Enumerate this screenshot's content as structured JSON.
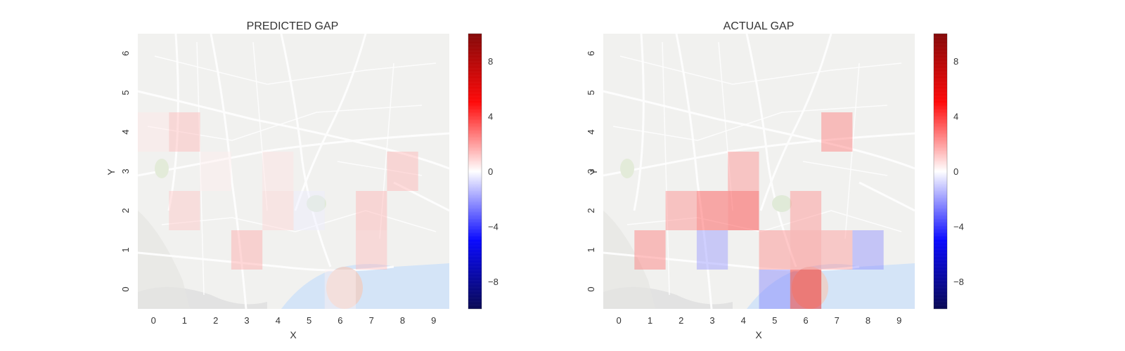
{
  "chart_data": [
    {
      "type": "heatmap",
      "title": "PREDICTED GAP",
      "xlabel": "X",
      "ylabel": "Y",
      "x_ticks": [
        "0",
        "1",
        "2",
        "3",
        "4",
        "5",
        "6",
        "7",
        "8",
        "9"
      ],
      "y_ticks": [
        "0",
        "1",
        "2",
        "3",
        "4",
        "5",
        "6"
      ],
      "grid": false,
      "background": "street map",
      "colormap": "seismic",
      "vlim": [
        -10,
        10
      ],
      "colorbar_ticks": [
        "−8",
        "−4",
        "0",
        "4",
        "8"
      ],
      "cells": [
        {
          "x": 1,
          "y": 4,
          "value": 1.5
        },
        {
          "x": 1,
          "y": 2,
          "value": 1.2
        },
        {
          "x": 3,
          "y": 1,
          "value": 1.8
        },
        {
          "x": 4,
          "y": 2,
          "value": 0.9
        },
        {
          "x": 4,
          "y": 3,
          "value": 0.6
        },
        {
          "x": 5,
          "y": 2,
          "value": -0.4
        },
        {
          "x": 6,
          "y": 0,
          "value": 0.3
        },
        {
          "x": 7,
          "y": 1,
          "value": 1.4
        },
        {
          "x": 7,
          "y": 2,
          "value": 1.6
        },
        {
          "x": 8,
          "y": 3,
          "value": 1.6
        },
        {
          "x": 2,
          "y": 3,
          "value": 0.4
        },
        {
          "x": 0,
          "y": 4,
          "value": 0.5
        }
      ]
    },
    {
      "type": "heatmap",
      "title": "ACTUAL GAP",
      "xlabel": "X",
      "ylabel": "Y",
      "x_ticks": [
        "0",
        "1",
        "2",
        "3",
        "4",
        "5",
        "6",
        "7",
        "8",
        "9"
      ],
      "y_ticks": [
        "0",
        "1",
        "2",
        "3",
        "4",
        "5",
        "6"
      ],
      "grid": false,
      "background": "street map",
      "colormap": "seismic",
      "vlim": [
        -10,
        10
      ],
      "colorbar_ticks": [
        "−8",
        "−4",
        "0",
        "4",
        "8"
      ],
      "cells": [
        {
          "x": 1,
          "y": 1,
          "value": 2.8
        },
        {
          "x": 2,
          "y": 2,
          "value": 2.5
        },
        {
          "x": 3,
          "y": 1,
          "value": -2.2
        },
        {
          "x": 3,
          "y": 2,
          "value": 3.8
        },
        {
          "x": 4,
          "y": 2,
          "value": 4.2
        },
        {
          "x": 4,
          "y": 3,
          "value": 2.4
        },
        {
          "x": 5,
          "y": 1,
          "value": 2.5
        },
        {
          "x": 5,
          "y": 0,
          "value": -2.6
        },
        {
          "x": 6,
          "y": 0,
          "value": 5.8
        },
        {
          "x": 6,
          "y": 1,
          "value": 2.8
        },
        {
          "x": 6,
          "y": 2,
          "value": 2.4
        },
        {
          "x": 7,
          "y": 1,
          "value": 2.2
        },
        {
          "x": 7,
          "y": 4,
          "value": 2.8
        },
        {
          "x": 8,
          "y": 1,
          "value": -2.4
        }
      ]
    }
  ]
}
